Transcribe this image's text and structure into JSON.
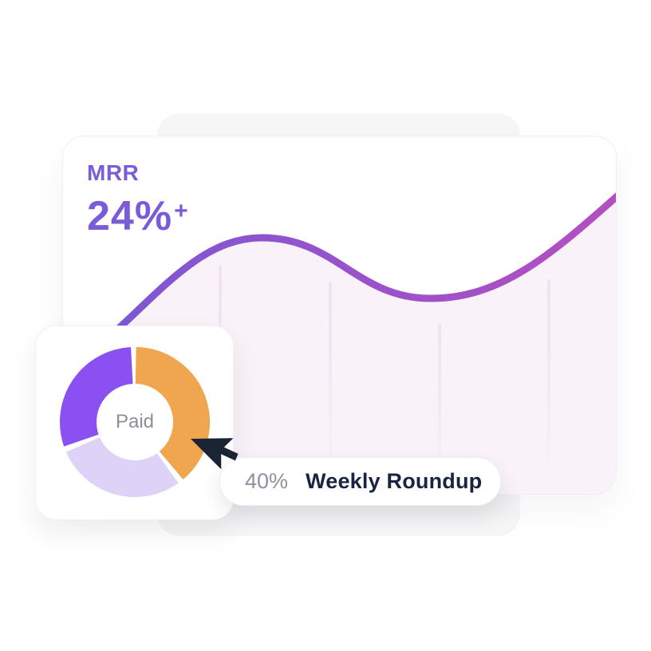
{
  "colors": {
    "page_bg": "#ffffff",
    "bg_card": "#f6f6f7",
    "accent_purple": "#7a5bd8",
    "line_gradient_start": "#7857d6",
    "line_gradient_end": "#b44ec2",
    "area_fill": "#f9f2f8",
    "gridline": "#f1e1f2",
    "donut_orange": "#efa64f",
    "donut_lavender": "#ded2f7",
    "donut_purple": "#8a50f2",
    "paid_text": "#8a8f99",
    "badge_percent_text": "#8d929e",
    "badge_label_text": "#182440",
    "cursor_fill": "#1b2435"
  },
  "mrr_card": {
    "label": "MRR",
    "value": "24%",
    "suffix": "+"
  },
  "donut_card": {
    "center_label": "Paid"
  },
  "badge": {
    "percent": "40%",
    "label": "Weekly Roundup"
  },
  "chart_data": [
    {
      "type": "area",
      "title": "MRR",
      "annotation": "24%+",
      "xlabel": "",
      "ylabel": "",
      "axes_visible": false,
      "legend": "none",
      "x_pct": [
        0,
        9,
        22,
        35,
        50,
        65,
        80,
        100
      ],
      "values_pct": [
        33,
        42,
        60,
        72,
        62,
        55,
        65,
        83
      ],
      "gridlines_x_pct": [
        28,
        48,
        68,
        88
      ],
      "line_color_left": "#7857d6",
      "line_color_right": "#b44ec2",
      "fill_color": "#f9f2f8"
    },
    {
      "type": "donut",
      "center_label": "Paid",
      "inner_radius_pct": 51,
      "segments": [
        {
          "label": "paid",
          "value_pct": 40,
          "color": "#efa64f",
          "start_deg": 1,
          "end_deg": 140
        },
        {
          "label": "segment-2",
          "value_pct": 28,
          "color": "#ded2f7",
          "start_deg": 144.5,
          "end_deg": 246.5
        },
        {
          "label": "segment-3",
          "value_pct": 29,
          "color": "#8a50f2",
          "start_deg": 251,
          "end_deg": 357
        }
      ]
    }
  ]
}
